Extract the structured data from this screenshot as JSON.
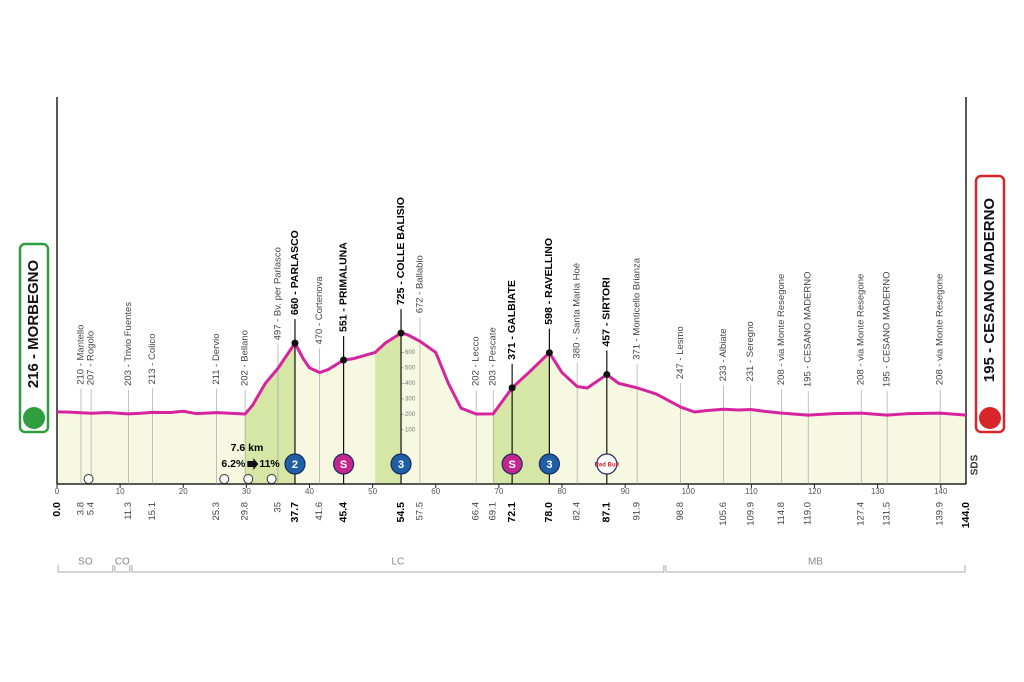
{
  "chart_data": {
    "type": "area",
    "color": "#d6249f",
    "fill": "#f6f8e1",
    "climb_fill": "#d5e6a6",
    "xlim": [
      0,
      144
    ],
    "ylim": [
      -250,
      2250
    ],
    "xticks": [
      0,
      10,
      20,
      30,
      40,
      50,
      60,
      70,
      80,
      90,
      100,
      110,
      120,
      130,
      140
    ],
    "yticks": [
      100,
      200,
      300,
      400,
      500,
      600
    ],
    "x": [
      0,
      2,
      3.8,
      5.4,
      8,
      11.3,
      13,
      15.1,
      18,
      20,
      22,
      25.3,
      27,
      29.8,
      31,
      33,
      35,
      37.7,
      39,
      40,
      41.6,
      43,
      45.4,
      47,
      50.4,
      52,
      54.5,
      55.5,
      57.5,
      60,
      62,
      64,
      66.4,
      69.1,
      72.1,
      75,
      78,
      80,
      82.4,
      84,
      87.1,
      89,
      91.9,
      95,
      98.8,
      101,
      103,
      105.6,
      108,
      109.9,
      112,
      114.8,
      119,
      123,
      127.4,
      131.5,
      135,
      139.9,
      144
    ],
    "values": [
      216,
      214,
      210,
      207,
      212,
      203,
      206,
      213,
      212,
      220,
      205,
      211,
      208,
      202,
      260,
      400,
      497,
      660,
      560,
      500,
      470,
      490,
      551,
      560,
      600,
      660,
      725,
      715,
      672,
      600,
      400,
      240,
      202,
      203,
      371,
      480,
      598,
      470,
      380,
      370,
      457,
      400,
      371,
      330,
      247,
      215,
      225,
      233,
      228,
      231,
      220,
      208,
      195,
      205,
      208,
      195,
      205,
      208,
      195
    ],
    "climbs": [
      {
        "start": 29.8,
        "end": 37.7
      },
      {
        "start": 50.4,
        "end": 54.5
      },
      {
        "start": 69.1,
        "end": 78.0
      }
    ],
    "waypoints": [
      {
        "km": {
          "value": 0,
          "label": "0.0"
        },
        "label": "216 - MORBEGNO"
      },
      {
        "km": 3.8,
        "label": "210 - Mantello"
      },
      {
        "km": 5.4,
        "label": "207 - Rogolo"
      },
      {
        "km": 11.3,
        "label": "203 - Trivio Fuentes"
      },
      {
        "km": 15.1,
        "label": "213 - Colico"
      },
      {
        "km": 25.3,
        "label": "211 - Dervio"
      },
      {
        "km": 29.8,
        "label": "202 - Bellano"
      },
      {
        "km": 35.0,
        "label": "497 - Bv. per Parlasco"
      },
      {
        "km": 37.7,
        "label": "660 - PARLASCO",
        "icon": "2",
        "icon_color": "#1e5fa6",
        "icon_text_color": "#ffffff"
      },
      {
        "km": 41.6,
        "label": "470 - Cortenova"
      },
      {
        "km": 45.4,
        "label": "551 - PRIMALUNA",
        "icon": "S",
        "icon_color": "#c4258f",
        "icon_text_color": "#ffffff"
      },
      {
        "km": 54.5,
        "label": "725 - COLLE BALISIO",
        "icon": "3",
        "icon_color": "#1e5fa6",
        "icon_text_color": "#ffffff"
      },
      {
        "km": 57.5,
        "label": "672 - Ballabio"
      },
      {
        "km": 66.4,
        "label": "202 - Lecco"
      },
      {
        "km": 69.1,
        "label": "203 - Pescate"
      },
      {
        "km": 72.1,
        "label": "371 - GALBIATE",
        "icon": "S",
        "icon_color": "#c4258f",
        "icon_text_color": "#ffffff"
      },
      {
        "km": {
          "value": 78,
          "label": "78.0"
        },
        "label": "598 - RAVELLINO",
        "icon": "3",
        "icon_color": "#1e5fa6",
        "icon_text_color": "#ffffff"
      },
      {
        "km": 82.4,
        "label": "380 - Santa Maria Hoè"
      },
      {
        "km": 87.1,
        "label": "457 - SIRTORI",
        "icon": "Red Bull",
        "icon_color": "#ffffff",
        "icon_text_color": "#d0202e"
      },
      {
        "km": 91.9,
        "label": "371 - Monticello Brianza"
      },
      {
        "km": 98.8,
        "label": "247 - Lesmo"
      },
      {
        "km": 105.6,
        "label": "233 - Albiate"
      },
      {
        "km": 109.9,
        "label": "231 - Seregno"
      },
      {
        "km": 114.8,
        "label": "208 - via Monte Resegone"
      },
      {
        "km": {
          "value": 119,
          "label": "119.0"
        },
        "label": "195 - CESANO MADERNO"
      },
      {
        "km": 127.4,
        "label": "208 - via Monte Resegone"
      },
      {
        "km": 131.5,
        "label": "195 - CESANO MADERNO"
      },
      {
        "km": 139.9,
        "label": "208 - via Monte Resegone"
      },
      {
        "km": {
          "value": 144,
          "label": "144.0"
        },
        "label": "195 - CESANO MADERNO"
      }
    ],
    "start_color": "#2e9e3e",
    "finish_color": "#d9262b",
    "climb_note": {
      "length": "7.6 km",
      "avg": "6.2%",
      "max": "11%",
      "km": 33
    },
    "sponsor": "SDS",
    "provinces": [
      {
        "name": "SO",
        "start": 0,
        "end": 9
      },
      {
        "name": "CO",
        "start": 9,
        "end": 11.7
      },
      {
        "name": "LC",
        "start": 11.7,
        "end": 96.3
      },
      {
        "name": "MB",
        "start": 96.3,
        "end": 144
      }
    ]
  }
}
